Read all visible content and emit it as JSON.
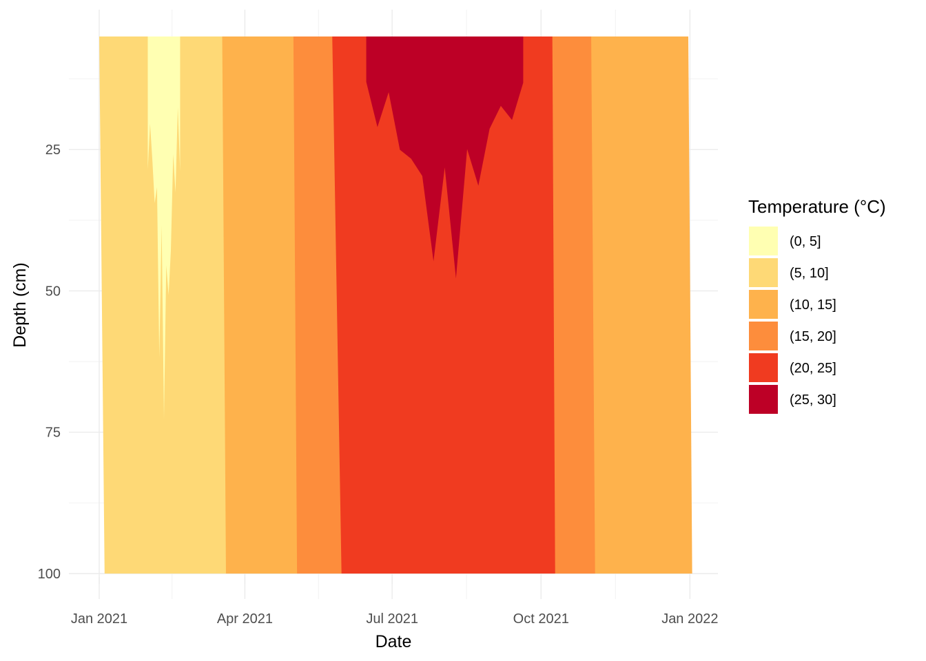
{
  "chart_data": {
    "type": "heatmap",
    "xlabel": "Date",
    "ylabel": "Depth (cm)",
    "x_ticks": [
      "Jan 2021",
      "Apr 2021",
      "Jul 2021",
      "Oct 2021",
      "Jan 2022"
    ],
    "x_tick_dates": [
      "2021-01-01",
      "2021-04-01",
      "2021-07-01",
      "2021-10-01",
      "2022-01-01"
    ],
    "y_ticks": [
      25,
      50,
      75,
      100
    ],
    "y_axis_reversed": true,
    "xlim": [
      "2021-01-01",
      "2021-12-31"
    ],
    "ylim": [
      5,
      100
    ],
    "grid": true,
    "legend": {
      "title": "Temperature (°C)",
      "position": "right",
      "entries": [
        {
          "label": "(0, 5]",
          "color": "#ffffb2"
        },
        {
          "label": "(5, 10]",
          "color": "#fed976"
        },
        {
          "label": "(10, 15]",
          "color": "#feb24c"
        },
        {
          "label": "(15, 20]",
          "color": "#fd8d3c"
        },
        {
          "label": "(20, 25]",
          "color": "#f03b20"
        },
        {
          "label": "(25, 30]",
          "color": "#bd0026"
        }
      ]
    },
    "zones": [
      {
        "bin": "(5, 10]",
        "start_date": "2021-01-01",
        "end_date": "2021-03-25",
        "depth_min": 5,
        "depth_max": 100
      },
      {
        "bin": "(0, 5]",
        "start_date": "2021-01-31",
        "end_date": "2021-02-20",
        "depth_min": 5,
        "depth_max": 75
      },
      {
        "bin": "(10, 15]",
        "start_date": "2021-03-18",
        "end_date": "2021-05-15",
        "depth_min": 5,
        "depth_max": 100
      },
      {
        "bin": "(15, 20]",
        "start_date": "2021-05-01",
        "end_date": "2021-06-26",
        "depth_min": 5,
        "depth_max": 100
      },
      {
        "bin": "(20, 25]",
        "start_date": "2021-05-25",
        "end_date": "2021-10-15",
        "depth_min": 5,
        "depth_max": 100
      },
      {
        "bin": "(25, 30]",
        "start_date": "2021-06-15",
        "end_date": "2021-09-20",
        "depth_min": 5,
        "depth_max": 50
      },
      {
        "bin": "(15, 20]",
        "start_date": "2021-10-08",
        "end_date": "2021-11-20",
        "depth_min": 5,
        "depth_max": 100
      },
      {
        "bin": "(10, 15]",
        "start_date": "2021-11-01",
        "end_date": "2021-12-31",
        "depth_min": 5,
        "depth_max": 100
      }
    ]
  }
}
